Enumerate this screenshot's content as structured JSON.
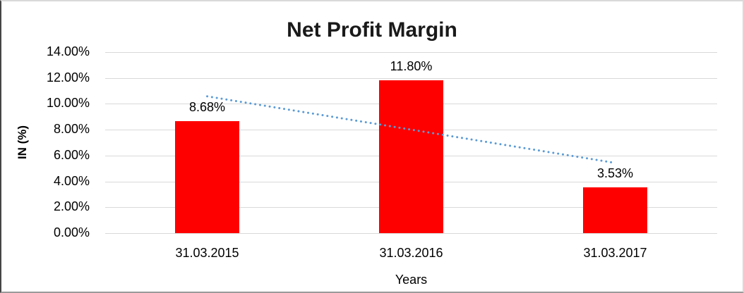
{
  "chart_data": {
    "type": "bar",
    "title": "Net Profit Margin",
    "xlabel": "Years",
    "ylabel": "IN (%)",
    "categories": [
      "31.03.2015",
      "31.03.2016",
      "31.03.2017"
    ],
    "series": [
      {
        "name": "Net Profit Margin",
        "values": [
          8.68,
          11.8,
          3.53
        ],
        "data_labels": [
          "8.68%",
          "11.80%",
          "3.53%"
        ],
        "color": "#ff0000"
      }
    ],
    "y_ticks": [
      "0.00%",
      "2.00%",
      "4.00%",
      "6.00%",
      "8.00%",
      "10.00%",
      "12.00%",
      "14.00%"
    ],
    "ylim": [
      0,
      14
    ],
    "grid": true,
    "legend": "none",
    "trendline": {
      "type": "linear",
      "style": "dotted",
      "color": "#5b9bd5",
      "start_value": 10.58,
      "end_value": 5.43
    }
  },
  "colors": {
    "bar": "#ff0000",
    "trendline": "#5b9bd5",
    "gridline": "#d9d9d9",
    "text": "#000000",
    "background": "#ffffff"
  }
}
